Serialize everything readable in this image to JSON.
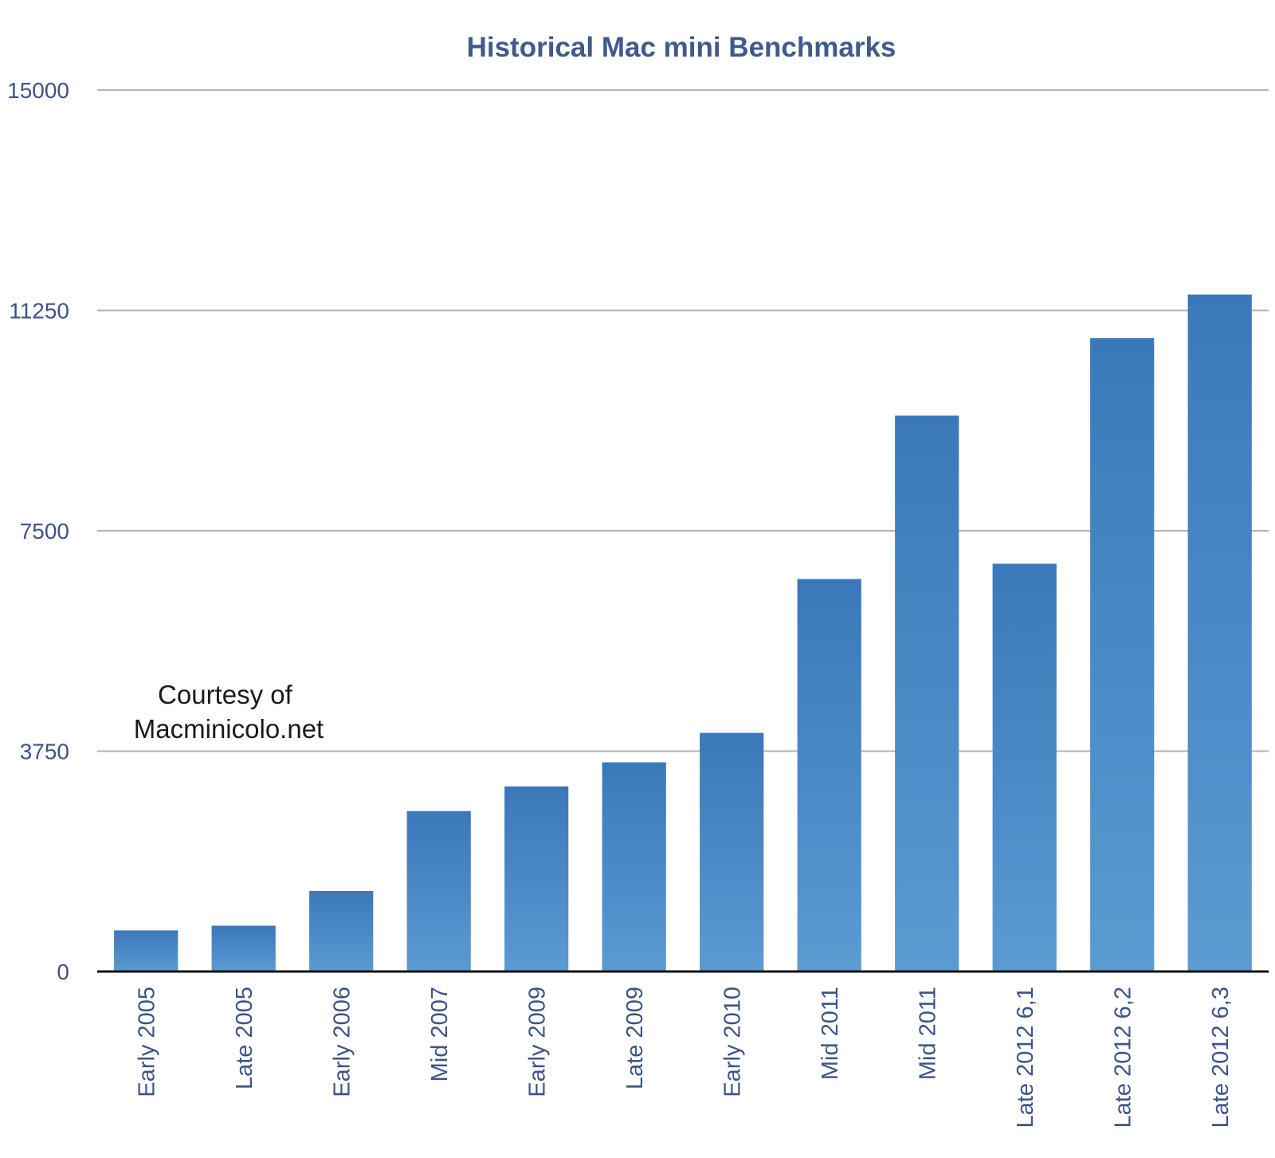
{
  "chart_data": {
    "type": "bar",
    "title": "Historical Mac mini Benchmarks",
    "xlabel": "",
    "ylabel": "",
    "ylim": [
      0,
      15000
    ],
    "yticks": [
      "0",
      "3750",
      "7500",
      "11250",
      "15000"
    ],
    "grid": true,
    "legend": "none",
    "categories": [
      "Early 2005",
      "Late 2005",
      "Early 2006",
      "Mid 2007",
      "Early 2009",
      "Late 2009",
      "Early 2010",
      "Mid 2011",
      "Mid 2011",
      "Late 2012 6,1",
      "Late 2012 6,2",
      "Late 2012 6,3"
    ],
    "values": [
      700,
      780,
      1370,
      2730,
      3150,
      3560,
      4060,
      6680,
      9460,
      6940,
      10780,
      11520
    ],
    "annotations": [
      {
        "lines": [
          "Courtesy of",
          "Macminicolo.net"
        ]
      }
    ],
    "colors": {
      "bar_top": "#3a78b9",
      "bar_bottom": "#5c9ad2",
      "title": "#3f5a8e",
      "ticks": "#3d5488",
      "grid": "#b3b3b3",
      "axis": "#111111"
    }
  }
}
